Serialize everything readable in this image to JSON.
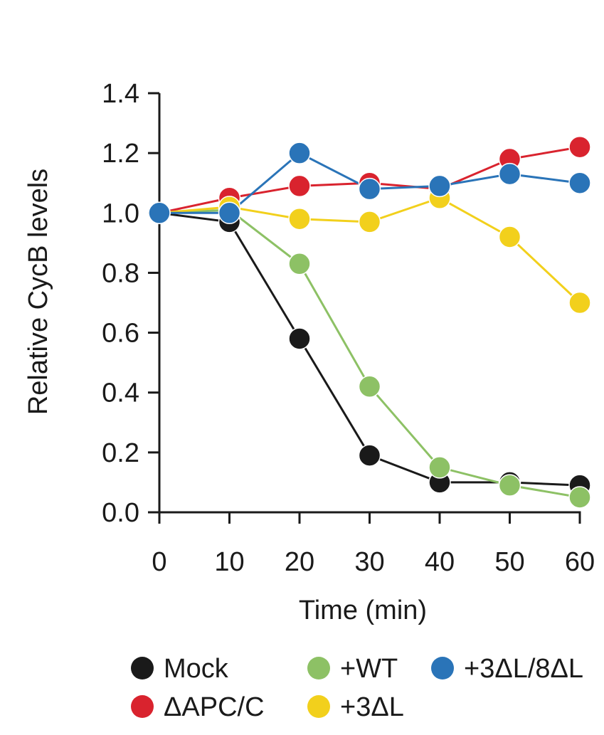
{
  "chart_data": {
    "type": "line",
    "title": "",
    "xlabel": "Time (min)",
    "ylabel": "Relative CycB levels",
    "x": [
      0,
      10,
      20,
      30,
      40,
      50,
      60
    ],
    "xlim": [
      0,
      60
    ],
    "ylim": [
      0,
      1.4
    ],
    "x_ticks": [
      "0",
      "10",
      "20",
      "30",
      "40",
      "50",
      "60"
    ],
    "y_ticks": [
      "0.0",
      "0.2",
      "0.4",
      "0.6",
      "0.8",
      "1.0",
      "1.2",
      "1.4"
    ],
    "grid": false,
    "legend_position": "bottom",
    "series": [
      {
        "name": "Mock",
        "color": "#1a1a1a",
        "values": [
          1.0,
          0.97,
          0.58,
          0.19,
          0.1,
          0.1,
          0.09
        ]
      },
      {
        "name": "ΔAPC/C",
        "color": "#d9232e",
        "values": [
          1.0,
          1.05,
          1.09,
          1.1,
          1.08,
          1.18,
          1.22
        ]
      },
      {
        "name": "+WT",
        "color": "#8dc165",
        "values": [
          1.0,
          1.01,
          0.83,
          0.42,
          0.15,
          0.09,
          0.05
        ]
      },
      {
        "name": "+3ΔL",
        "color": "#f2d01c",
        "values": [
          1.0,
          1.02,
          0.98,
          0.97,
          1.05,
          0.92,
          0.7
        ]
      },
      {
        "name": "+3ΔL/8ΔL",
        "color": "#2a74b8",
        "values": [
          1.0,
          1.0,
          1.2,
          1.08,
          1.09,
          1.13,
          1.1
        ]
      }
    ]
  }
}
